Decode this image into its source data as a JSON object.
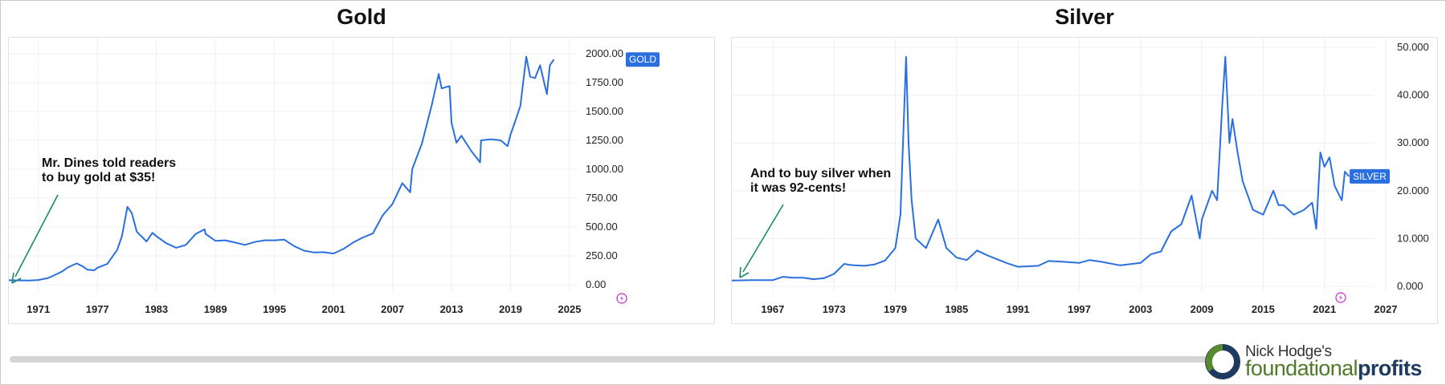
{
  "brand": {
    "line1": "Nick Hodge's",
    "line2a": "foundational",
    "line2b": "profits",
    "logo_icon": "ring-logo-icon",
    "colors": {
      "ring_dark": "#1f3a5f",
      "ring_green": "#5a8a2f"
    }
  },
  "chart_data": [
    {
      "type": "line",
      "title": "Gold",
      "series": [
        {
          "tag_label": "GOLD",
          "color": "#2a6fe0",
          "x": [
            1968,
            1970,
            1971,
            1972,
            1973,
            1973.5,
            1974,
            1974.9,
            1975.5,
            1976,
            1976.7,
            1977,
            1978,
            1979,
            1979.5,
            1980.05,
            1980.5,
            1981,
            1982,
            1982.6,
            1983,
            1984,
            1985,
            1986,
            1987,
            1987.9,
            1988,
            1989,
            1990,
            1991,
            1992,
            1993,
            1994,
            1995,
            1996,
            1997,
            1998,
            1999,
            2000,
            2001,
            2002,
            2003,
            2004,
            2005,
            2006,
            2007,
            2008,
            2008.8,
            2009,
            2010,
            2011,
            2011.7,
            2012,
            2012.8,
            2013,
            2013.5,
            2014,
            2015,
            2015.9,
            2016,
            2017,
            2018,
            2018.7,
            2019,
            2019.5,
            2020,
            2020.6,
            2021,
            2021.5,
            2022,
            2022.7,
            2023,
            2023.4
          ],
          "y": [
            39,
            36,
            41,
            58,
            97,
            120,
            150,
            185,
            160,
            130,
            125,
            147,
            180,
            300,
            420,
            675,
            620,
            460,
            375,
            450,
            420,
            360,
            320,
            345,
            440,
            480,
            440,
            380,
            385,
            365,
            345,
            370,
            385,
            385,
            390,
            335,
            295,
            280,
            282,
            270,
            310,
            365,
            410,
            444,
            600,
            700,
            880,
            800,
            1000,
            1225,
            1560,
            1825,
            1700,
            1720,
            1400,
            1230,
            1290,
            1160,
            1060,
            1250,
            1260,
            1250,
            1200,
            1300,
            1420,
            1550,
            1975,
            1800,
            1790,
            1900,
            1650,
            1900,
            1950
          ]
        }
      ],
      "annotation": [
        "Mr. Dines told readers",
        "to buy gold at $35!"
      ],
      "annotation_color": "#1a8a6a",
      "x_ticks": [
        1971,
        1977,
        1983,
        1989,
        1995,
        2001,
        2007,
        2013,
        2019,
        2025
      ],
      "y_ticks": [
        "2000.00",
        "1750.00",
        "1500.00",
        "1250.00",
        "1000.00",
        "750.00",
        "500.00",
        "250.00",
        "0.00"
      ],
      "xlim": [
        1968,
        2025
      ],
      "ylim": [
        0,
        2000
      ],
      "grid": true,
      "y_axis_side": "right"
    },
    {
      "type": "line",
      "title": "Silver",
      "series": [
        {
          "tag_label": "SILVER",
          "color": "#2a6fe0",
          "x": [
            1963,
            1965,
            1967,
            1968,
            1969,
            1970,
            1971,
            1972,
            1973,
            1974,
            1974.5,
            1975,
            1976,
            1977,
            1978,
            1979,
            1979.5,
            1980.05,
            1980.3,
            1980.6,
            1981,
            1982,
            1983.2,
            1984,
            1985,
            1986,
            1987,
            1988,
            1990,
            1991,
            1993,
            1994,
            1995,
            1997,
            1998,
            1999,
            2001,
            2003,
            2004,
            2005,
            2006,
            2007,
            2008,
            2008.8,
            2009,
            2010,
            2010.5,
            2011,
            2011.3,
            2011.7,
            2012,
            2012.5,
            2013,
            2013.5,
            2014,
            2015,
            2016,
            2016.5,
            2017,
            2018,
            2019,
            2019.8,
            2020.2,
            2020.6,
            2021,
            2021.5,
            2022,
            2022.7,
            2023,
            2023.4
          ],
          "y": [
            1.2,
            1.29,
            1.29,
            2.0,
            1.8,
            1.8,
            1.5,
            1.7,
            2.6,
            4.7,
            4.5,
            4.4,
            4.3,
            4.6,
            5.4,
            8.0,
            15.0,
            48.0,
            30.0,
            18.0,
            10.0,
            8.0,
            14.0,
            8.0,
            6.0,
            5.5,
            7.5,
            6.5,
            4.8,
            4.1,
            4.3,
            5.3,
            5.2,
            4.9,
            5.5,
            5.2,
            4.4,
            4.9,
            6.7,
            7.3,
            11.5,
            13.0,
            19.0,
            10.0,
            14.0,
            20.0,
            18.0,
            38.0,
            48.0,
            30.0,
            35.0,
            28.0,
            22.0,
            19.0,
            16.0,
            15.0,
            20.0,
            17.0,
            17.0,
            15.0,
            16.0,
            17.5,
            12.0,
            28.0,
            25.0,
            27.0,
            21.0,
            18.0,
            24.0,
            23.0
          ]
        }
      ],
      "annotation": [
        "And to buy silver when",
        "it was 92-cents!"
      ],
      "annotation_color": "#1a8a6a",
      "x_ticks": [
        1967,
        1973,
        1979,
        1985,
        1991,
        1997,
        2003,
        2009,
        2015,
        2021,
        2027
      ],
      "y_ticks": [
        "50.000",
        "40.000",
        "30.000",
        "20.000",
        "10.000",
        "0.000"
      ],
      "xlim": [
        1963,
        2027
      ],
      "ylim": [
        0,
        50
      ],
      "grid": true,
      "y_axis_side": "right"
    }
  ]
}
